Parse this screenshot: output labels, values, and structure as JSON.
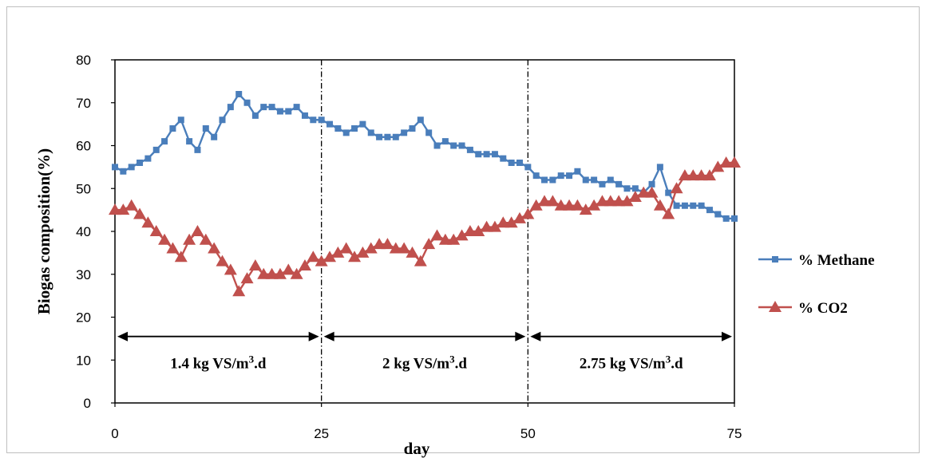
{
  "chart_data": {
    "type": "line",
    "title": "",
    "xlabel": "day",
    "ylabel": "Biogas composition(%)",
    "xlim": [
      0,
      75
    ],
    "ylim": [
      0,
      80
    ],
    "xticks": [
      0,
      25,
      50,
      75
    ],
    "yticks": [
      0,
      10,
      20,
      30,
      40,
      50,
      60,
      70,
      80
    ],
    "grid": false,
    "legend_position": "right",
    "dividers": [
      25,
      50
    ],
    "periods": [
      {
        "label": "1.4 kg VS/m",
        "sup": "3",
        "suffix": ".d",
        "from": 0,
        "to": 25
      },
      {
        "label": "2 kg VS/m",
        "sup": "3",
        "suffix": ".d",
        "from": 25,
        "to": 50
      },
      {
        "label": "2.75 kg VS/m",
        "sup": "3",
        "suffix": ".d",
        "from": 50,
        "to": 75
      }
    ],
    "series": [
      {
        "name": "% Methane",
        "color": "#4a7ebb",
        "marker": "square",
        "x": [
          0,
          1,
          2,
          3,
          4,
          5,
          6,
          7,
          8,
          9,
          10,
          11,
          12,
          13,
          14,
          15,
          16,
          17,
          18,
          19,
          20,
          21,
          22,
          23,
          24,
          25,
          26,
          27,
          28,
          29,
          30,
          31,
          32,
          33,
          34,
          35,
          36,
          37,
          38,
          39,
          40,
          41,
          42,
          43,
          44,
          45,
          46,
          47,
          48,
          49,
          50,
          51,
          52,
          53,
          54,
          55,
          56,
          57,
          58,
          59,
          60,
          61,
          62,
          63,
          64,
          65,
          66,
          67,
          68,
          69,
          70,
          71,
          72,
          73,
          74,
          75
        ],
        "y": [
          55,
          54,
          55,
          56,
          57,
          59,
          61,
          64,
          66,
          61,
          59,
          64,
          62,
          66,
          69,
          72,
          70,
          67,
          69,
          69,
          68,
          68,
          69,
          67,
          66,
          66,
          65,
          64,
          63,
          64,
          65,
          63,
          62,
          62,
          62,
          63,
          64,
          66,
          63,
          60,
          61,
          60,
          60,
          59,
          58,
          58,
          58,
          57,
          56,
          56,
          55,
          53,
          52,
          52,
          53,
          53,
          54,
          52,
          52,
          51,
          52,
          51,
          50,
          50,
          49,
          51,
          55,
          49,
          46,
          46,
          46,
          46,
          45,
          44,
          43,
          43
        ]
      },
      {
        "name": "% CO2",
        "color": "#c0504d",
        "marker": "triangle",
        "x": [
          0,
          1,
          2,
          3,
          4,
          5,
          6,
          7,
          8,
          9,
          10,
          11,
          12,
          13,
          14,
          15,
          16,
          17,
          18,
          19,
          20,
          21,
          22,
          23,
          24,
          25,
          26,
          27,
          28,
          29,
          30,
          31,
          32,
          33,
          34,
          35,
          36,
          37,
          38,
          39,
          40,
          41,
          42,
          43,
          44,
          45,
          46,
          47,
          48,
          49,
          50,
          51,
          52,
          53,
          54,
          55,
          56,
          57,
          58,
          59,
          60,
          61,
          62,
          63,
          64,
          65,
          66,
          67,
          68,
          69,
          70,
          71,
          72,
          73,
          74,
          75
        ],
        "y": [
          45,
          45,
          46,
          44,
          42,
          40,
          38,
          36,
          34,
          38,
          40,
          38,
          36,
          33,
          31,
          26,
          29,
          32,
          30,
          30,
          30,
          31,
          30,
          32,
          34,
          33,
          34,
          35,
          36,
          34,
          35,
          36,
          37,
          37,
          36,
          36,
          35,
          33,
          37,
          39,
          38,
          38,
          39,
          40,
          40,
          41,
          41,
          42,
          42,
          43,
          44,
          46,
          47,
          47,
          46,
          46,
          46,
          45,
          46,
          47,
          47,
          47,
          47,
          48,
          49,
          49,
          46,
          44,
          50,
          53,
          53,
          53,
          53,
          55,
          56,
          56
        ]
      }
    ]
  }
}
